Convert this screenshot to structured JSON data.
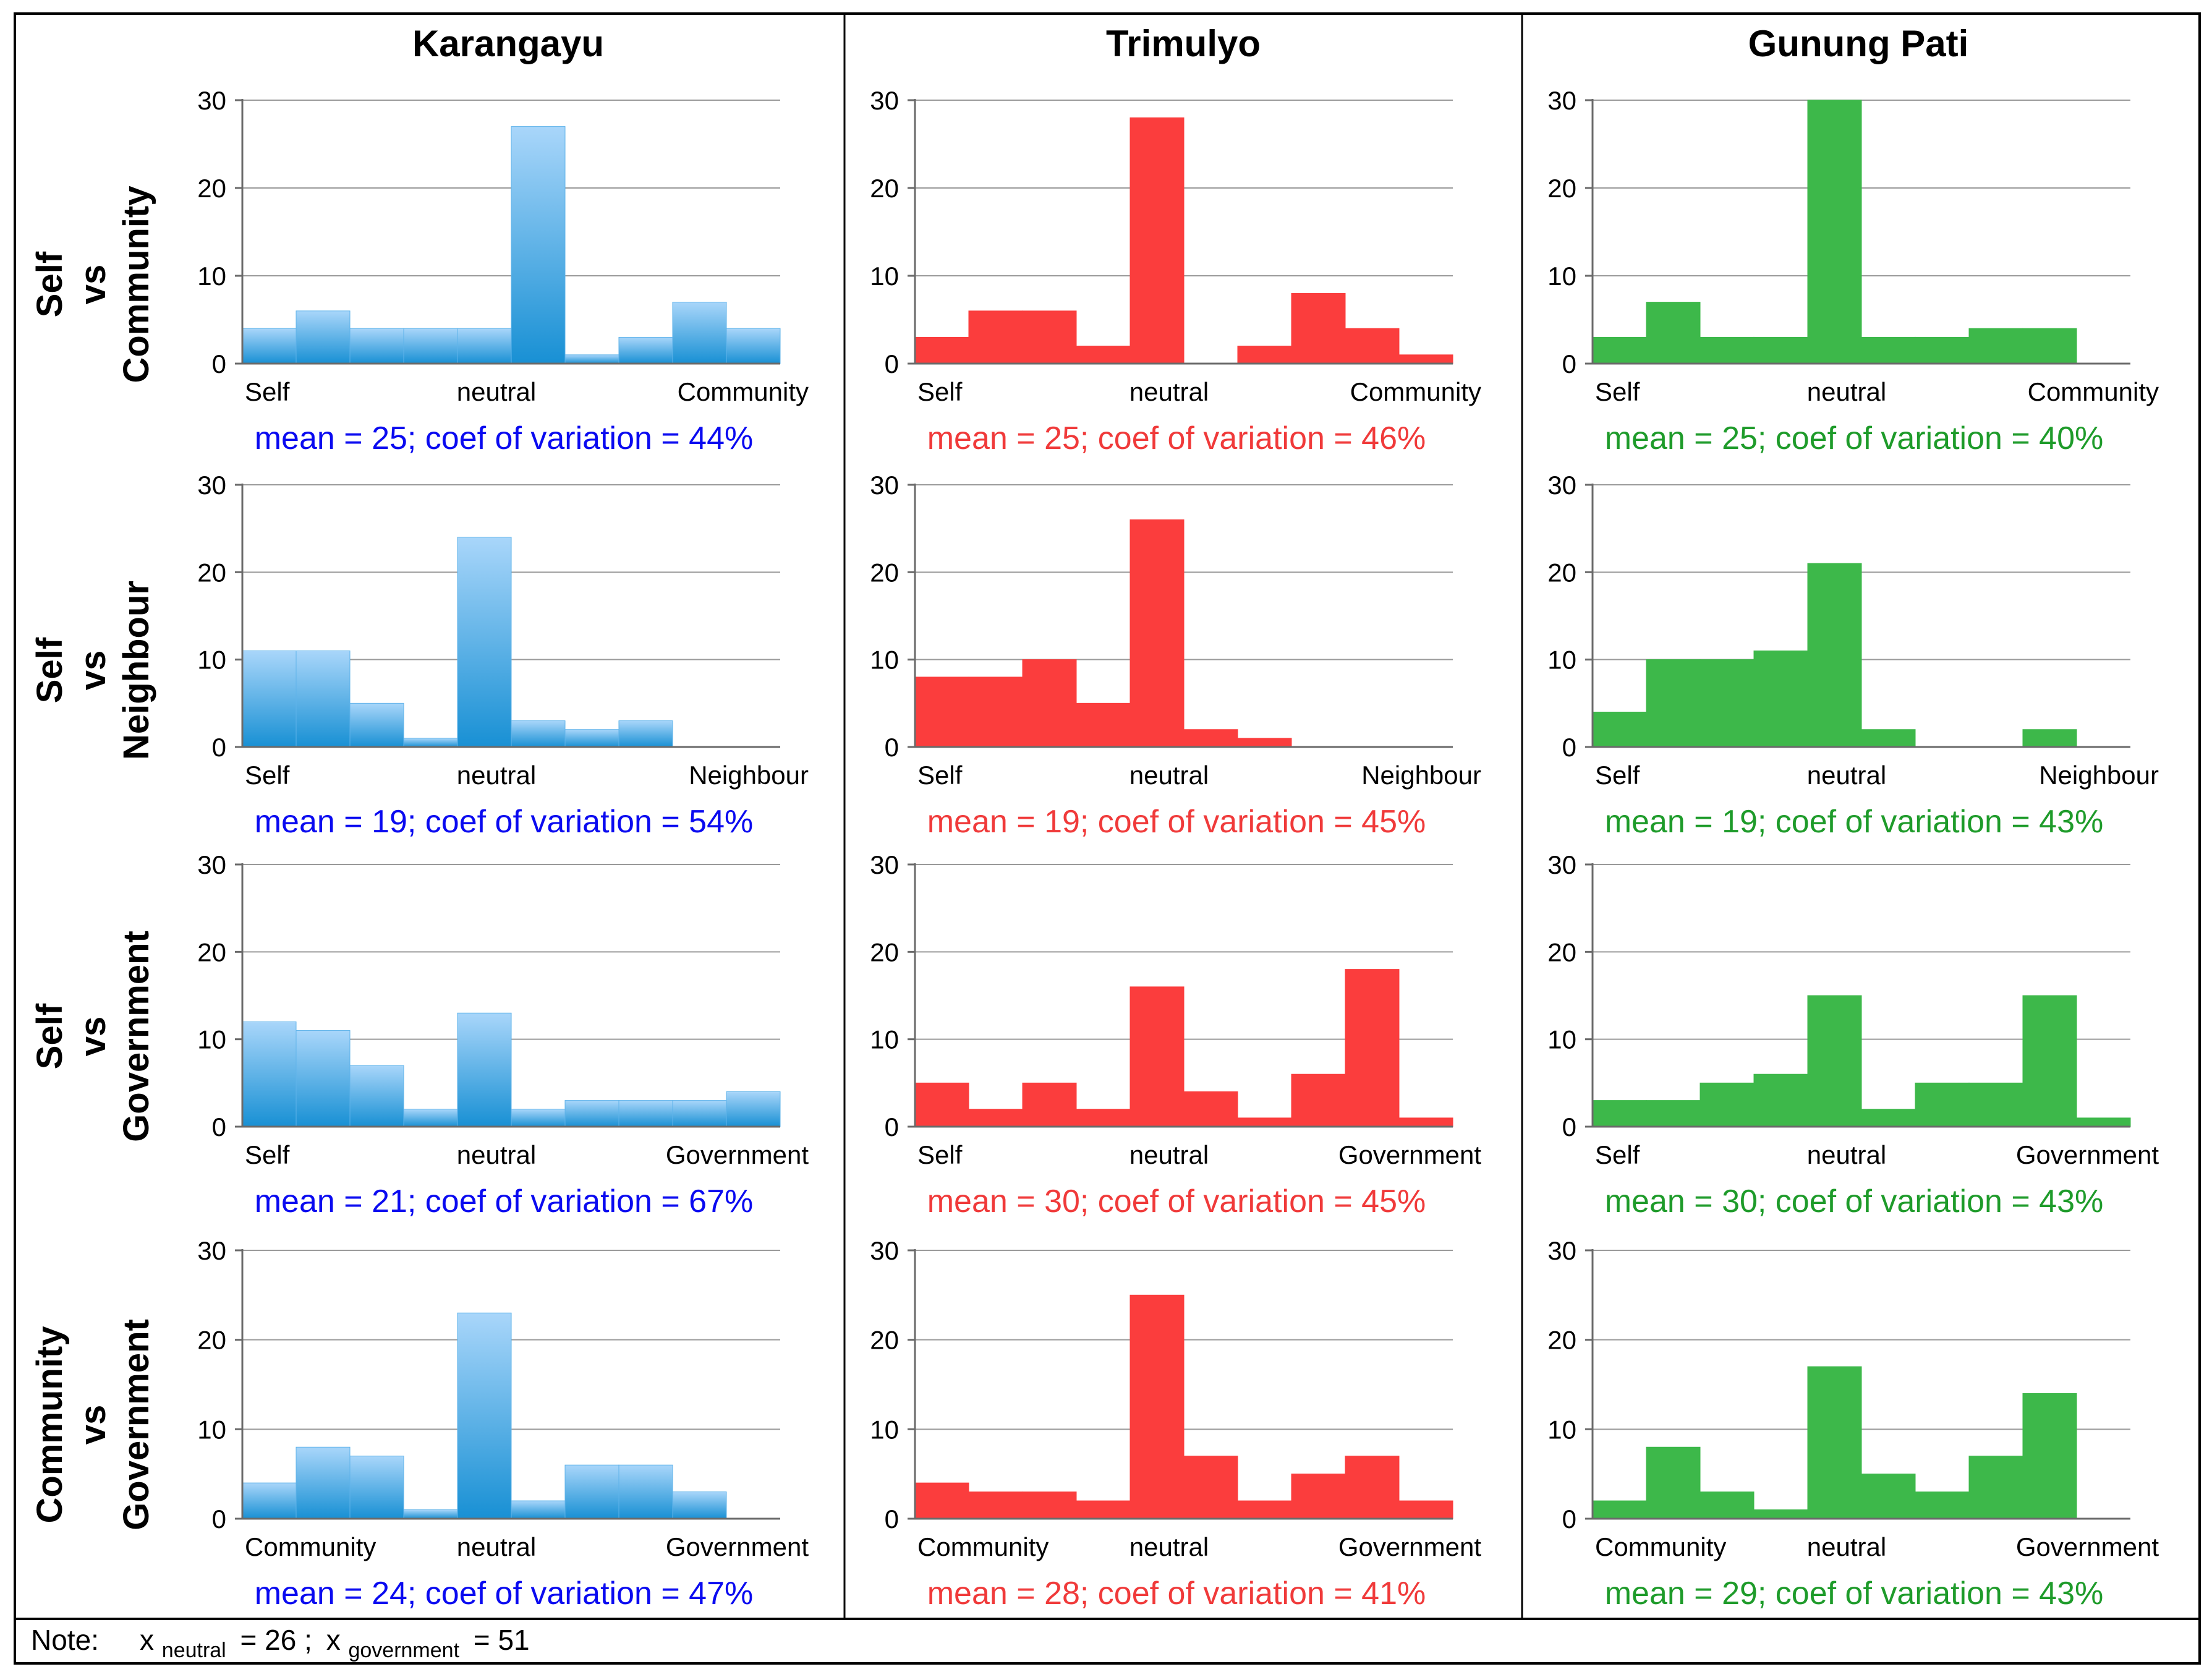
{
  "columns": [
    {
      "title": "Karangayu",
      "color": "#2A9BDF",
      "stat_color": "#0A0AF0",
      "gradient": true
    },
    {
      "title": "Trimulyo",
      "color": "#FB3D3D",
      "stat_color": "#F03A3A",
      "gradient": false
    },
    {
      "title": "Gunung Pati",
      "color": "#3DB84A",
      "stat_color": "#1E9B2A",
      "gradient": false
    }
  ],
  "rows": [
    {
      "label_lines": [
        "Self",
        "vs",
        "Community"
      ]
    },
    {
      "label_lines": [
        "Self",
        "vs",
        "Neighbour"
      ]
    },
    {
      "label_lines": [
        "Self",
        "vs",
        "Government"
      ]
    },
    {
      "label_lines": [
        "Community",
        "vs",
        "Government"
      ]
    }
  ],
  "chart_data": [
    {
      "type": "bar",
      "row": 0,
      "col": 0,
      "ylim": [
        0,
        30
      ],
      "yticks": [
        0,
        10,
        20,
        30
      ],
      "x_labels": [
        "Self",
        "neutral",
        "Community"
      ],
      "values": [
        4,
        6,
        4,
        4,
        4,
        27,
        1,
        3,
        7,
        4
      ],
      "stats": "mean = 25; coef of variation = 44%"
    },
    {
      "type": "bar",
      "row": 0,
      "col": 1,
      "ylim": [
        0,
        30
      ],
      "yticks": [
        0,
        10,
        20,
        30
      ],
      "x_labels": [
        "Self",
        "neutral",
        "Community"
      ],
      "values": [
        3,
        6,
        6,
        2,
        28,
        0,
        2,
        8,
        4,
        1
      ],
      "stats": "mean = 25; coef of variation = 46%"
    },
    {
      "type": "bar",
      "row": 0,
      "col": 2,
      "ylim": [
        0,
        30
      ],
      "yticks": [
        0,
        10,
        20,
        30
      ],
      "x_labels": [
        "Self",
        "neutral",
        "Community"
      ],
      "values": [
        3,
        7,
        3,
        3,
        30,
        3,
        3,
        4,
        4,
        0
      ],
      "stats": "mean = 25; coef of variation = 40%"
    },
    {
      "type": "bar",
      "row": 1,
      "col": 0,
      "ylim": [
        0,
        30
      ],
      "yticks": [
        0,
        10,
        20,
        30
      ],
      "x_labels": [
        "Self",
        "neutral",
        "Neighbour"
      ],
      "values": [
        11,
        11,
        5,
        1,
        24,
        3,
        2,
        3,
        0,
        0
      ],
      "stats": "mean = 19; coef of variation = 54%"
    },
    {
      "type": "bar",
      "row": 1,
      "col": 1,
      "ylim": [
        0,
        30
      ],
      "yticks": [
        0,
        10,
        20,
        30
      ],
      "x_labels": [
        "Self",
        "neutral",
        "Neighbour"
      ],
      "values": [
        8,
        8,
        10,
        5,
        26,
        2,
        1,
        0,
        0,
        0
      ],
      "stats": "mean = 19; coef of variation = 45%"
    },
    {
      "type": "bar",
      "row": 1,
      "col": 2,
      "ylim": [
        0,
        30
      ],
      "yticks": [
        0,
        10,
        20,
        30
      ],
      "x_labels": [
        "Self",
        "neutral",
        "Neighbour"
      ],
      "values": [
        4,
        10,
        10,
        11,
        21,
        2,
        0,
        0,
        2,
        0
      ],
      "stats": "mean = 19; coef of variation = 43%"
    },
    {
      "type": "bar",
      "row": 2,
      "col": 0,
      "ylim": [
        0,
        30
      ],
      "yticks": [
        0,
        10,
        20,
        30
      ],
      "x_labels": [
        "Self",
        "neutral",
        "Government"
      ],
      "values": [
        12,
        11,
        7,
        2,
        13,
        2,
        3,
        3,
        3,
        4
      ],
      "stats": "mean = 21; coef of variation = 67%"
    },
    {
      "type": "bar",
      "row": 2,
      "col": 1,
      "ylim": [
        0,
        30
      ],
      "yticks": [
        0,
        10,
        20,
        30
      ],
      "x_labels": [
        "Self",
        "neutral",
        "Government"
      ],
      "values": [
        5,
        2,
        5,
        2,
        16,
        4,
        1,
        6,
        18,
        1
      ],
      "stats": "mean = 30; coef of variation = 45%"
    },
    {
      "type": "bar",
      "row": 2,
      "col": 2,
      "ylim": [
        0,
        30
      ],
      "yticks": [
        0,
        10,
        20,
        30
      ],
      "x_labels": [
        "Self",
        "neutral",
        "Government"
      ],
      "values": [
        3,
        3,
        5,
        6,
        15,
        2,
        5,
        5,
        15,
        1
      ],
      "stats": "mean = 30; coef of variation = 43%"
    },
    {
      "type": "bar",
      "row": 3,
      "col": 0,
      "ylim": [
        0,
        30
      ],
      "yticks": [
        0,
        10,
        20,
        30
      ],
      "x_labels": [
        "Community",
        "neutral",
        "Government"
      ],
      "values": [
        4,
        8,
        7,
        1,
        23,
        2,
        6,
        6,
        3,
        0
      ],
      "stats": "mean = 24; coef of variation = 47%"
    },
    {
      "type": "bar",
      "row": 3,
      "col": 1,
      "ylim": [
        0,
        30
      ],
      "yticks": [
        0,
        10,
        20,
        30
      ],
      "x_labels": [
        "Community",
        "neutral",
        "Government"
      ],
      "values": [
        4,
        3,
        3,
        2,
        25,
        7,
        2,
        5,
        7,
        2
      ],
      "stats": "mean = 28; coef of variation = 41%"
    },
    {
      "type": "bar",
      "row": 3,
      "col": 2,
      "ylim": [
        0,
        30
      ],
      "yticks": [
        0,
        10,
        20,
        30
      ],
      "x_labels": [
        "Community",
        "neutral",
        "Government"
      ],
      "values": [
        2,
        8,
        3,
        1,
        17,
        5,
        3,
        7,
        14,
        0
      ],
      "stats": "mean = 29; coef of variation = 43%"
    }
  ],
  "note": {
    "label": "Note:",
    "x_symbol": "x",
    "neutral_sub": "neutral",
    "neutral_value": "= 26 ;",
    "government_sub": "government",
    "government_value": "= 51"
  }
}
